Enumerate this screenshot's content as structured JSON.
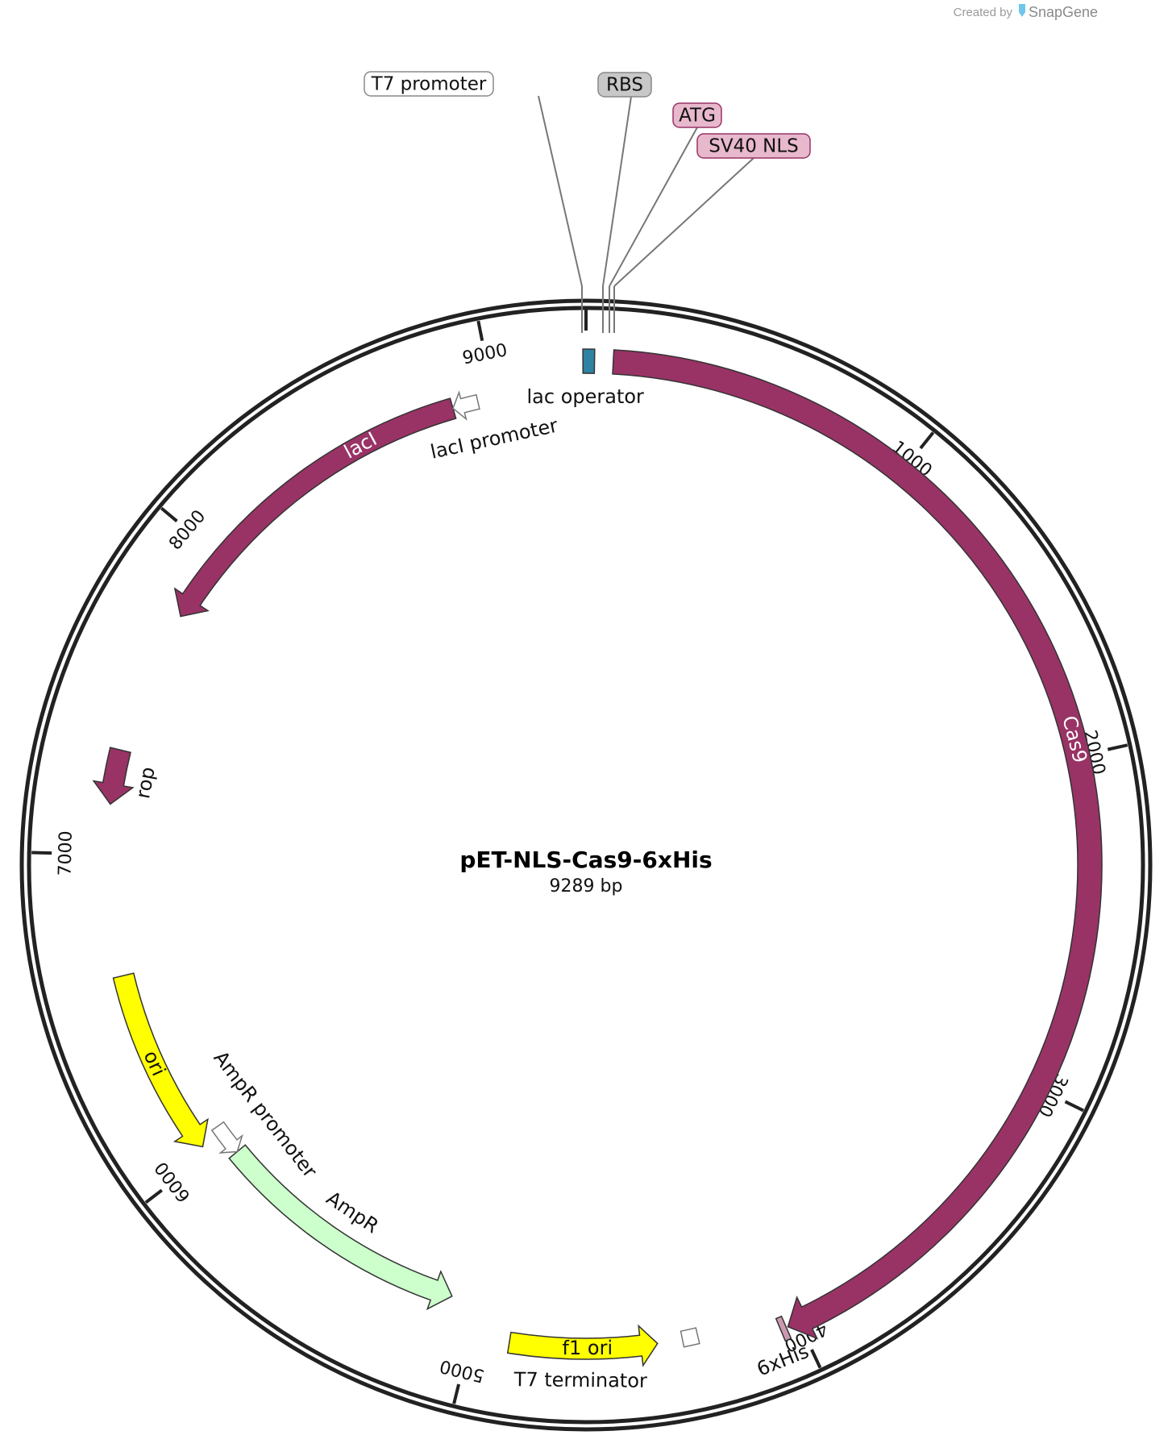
{
  "credit": {
    "prefix": "Created by",
    "brand": "SnapGene"
  },
  "plasmid": {
    "name": "pET-NLS-Cas9-6xHis",
    "size_label": "9289 bp",
    "length_bp": 9289
  },
  "ticks": [
    {
      "bp": 1000,
      "label": "1000"
    },
    {
      "bp": 2000,
      "label": "2000"
    },
    {
      "bp": 3000,
      "label": "3000"
    },
    {
      "bp": 4000,
      "label": "4000"
    },
    {
      "bp": 5000,
      "label": "5000"
    },
    {
      "bp": 6000,
      "label": "6000"
    },
    {
      "bp": 7000,
      "label": "7000"
    },
    {
      "bp": 8000,
      "label": "8000"
    },
    {
      "bp": 9000,
      "label": "9000"
    }
  ],
  "features": [
    {
      "id": "cas9",
      "label": "Cas9",
      "start": 80,
      "end": 4035,
      "direction": "forward",
      "color": "#993366",
      "label_color": "#ffffff",
      "label_inside": true
    },
    {
      "id": "laci",
      "label": "lacI",
      "start": 7780,
      "end": 8870,
      "direction": "reverse",
      "color": "#993366",
      "label_color": "#ffffff",
      "label_inside": true
    },
    {
      "id": "rop",
      "label": "rop",
      "start": 7155,
      "end": 7325,
      "direction": "reverse",
      "color": "#993366",
      "label_color": "#111111",
      "label_inside": false
    },
    {
      "id": "ori",
      "label": "ori",
      "start": 6030,
      "end": 6620,
      "direction": "reverse",
      "color": "#ffff00",
      "label_color": "#111111",
      "label_inside": true
    },
    {
      "id": "ampr",
      "label": "AmpR",
      "start": 5090,
      "end": 5950,
      "direction": "reverse",
      "color": "#ccffcc",
      "label_color": "#111111",
      "label_inside": false
    },
    {
      "id": "ampr_promoter",
      "label": "AmpR promoter",
      "start": 5950,
      "end": 6055,
      "direction": "reverse",
      "color": "#ffffff",
      "label_color": "#111111",
      "label_inside": false
    },
    {
      "id": "f1_ori",
      "label": "f1 ori",
      "start": 4425,
      "end": 4880,
      "direction": "reverse",
      "color": "#ffff00",
      "label_color": "#111111",
      "label_inside": true
    },
    {
      "id": "t7_terminator",
      "label": "T7 terminator",
      "start": 4300,
      "end": 4348,
      "direction": "none",
      "color": "#ffffff",
      "label_color": "#111111",
      "label_inside": false
    },
    {
      "id": "his6",
      "label": "6xHis",
      "start": 4040,
      "end": 4058,
      "direction": "none",
      "color": "#cc99b2",
      "label_color": "#111111",
      "label_inside": false
    },
    {
      "id": "laci_promoter",
      "label": "lacI promoter",
      "start": 8870,
      "end": 8950,
      "direction": "reverse",
      "color": "#ffffff",
      "label_color": "#111111",
      "label_inside": false
    },
    {
      "id": "lac_operator",
      "label": "lac operator",
      "start": 9280,
      "end": 25,
      "direction": "none",
      "color": "#2e83a3",
      "label_color": "#111111",
      "label_inside": false
    }
  ],
  "callouts": [
    {
      "label": "T7 promoter",
      "bg": "#ffffff",
      "border": "#888888"
    },
    {
      "label": "RBS",
      "bg": "#c8c8c8",
      "border": "#888888"
    },
    {
      "label": "ATG",
      "bg": "#e8b8cc",
      "border": "#993366"
    },
    {
      "label": "SV40 NLS",
      "bg": "#e8b8cc",
      "border": "#993366"
    }
  ]
}
